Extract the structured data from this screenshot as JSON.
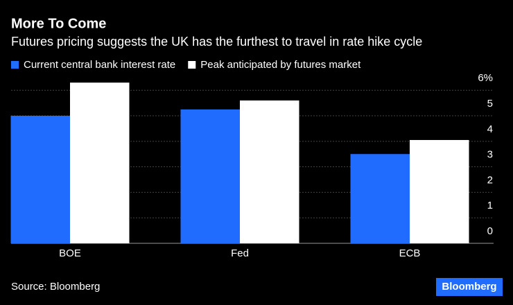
{
  "chart_data": {
    "type": "bar",
    "title": "More To Come",
    "subtitle": "Futures pricing suggests the UK has the furthest to travel in rate hike cycle",
    "categories": [
      "BOE",
      "Fed",
      "ECB"
    ],
    "series": [
      {
        "name": "Current central bank interest rate",
        "color": "#1f6cff",
        "values": [
          5.0,
          5.25,
          3.5
        ]
      },
      {
        "name": "Peak anticipated by futures market",
        "color": "#ffffff",
        "values": [
          6.3,
          5.6,
          4.05
        ]
      }
    ],
    "ylim": [
      0,
      6.4
    ],
    "yticks": [
      0,
      1,
      2,
      3,
      4,
      5,
      {
        "value": 6,
        "label": "6%"
      }
    ],
    "grid": true,
    "source": "Source: Bloomberg",
    "logo": "Bloomberg"
  }
}
